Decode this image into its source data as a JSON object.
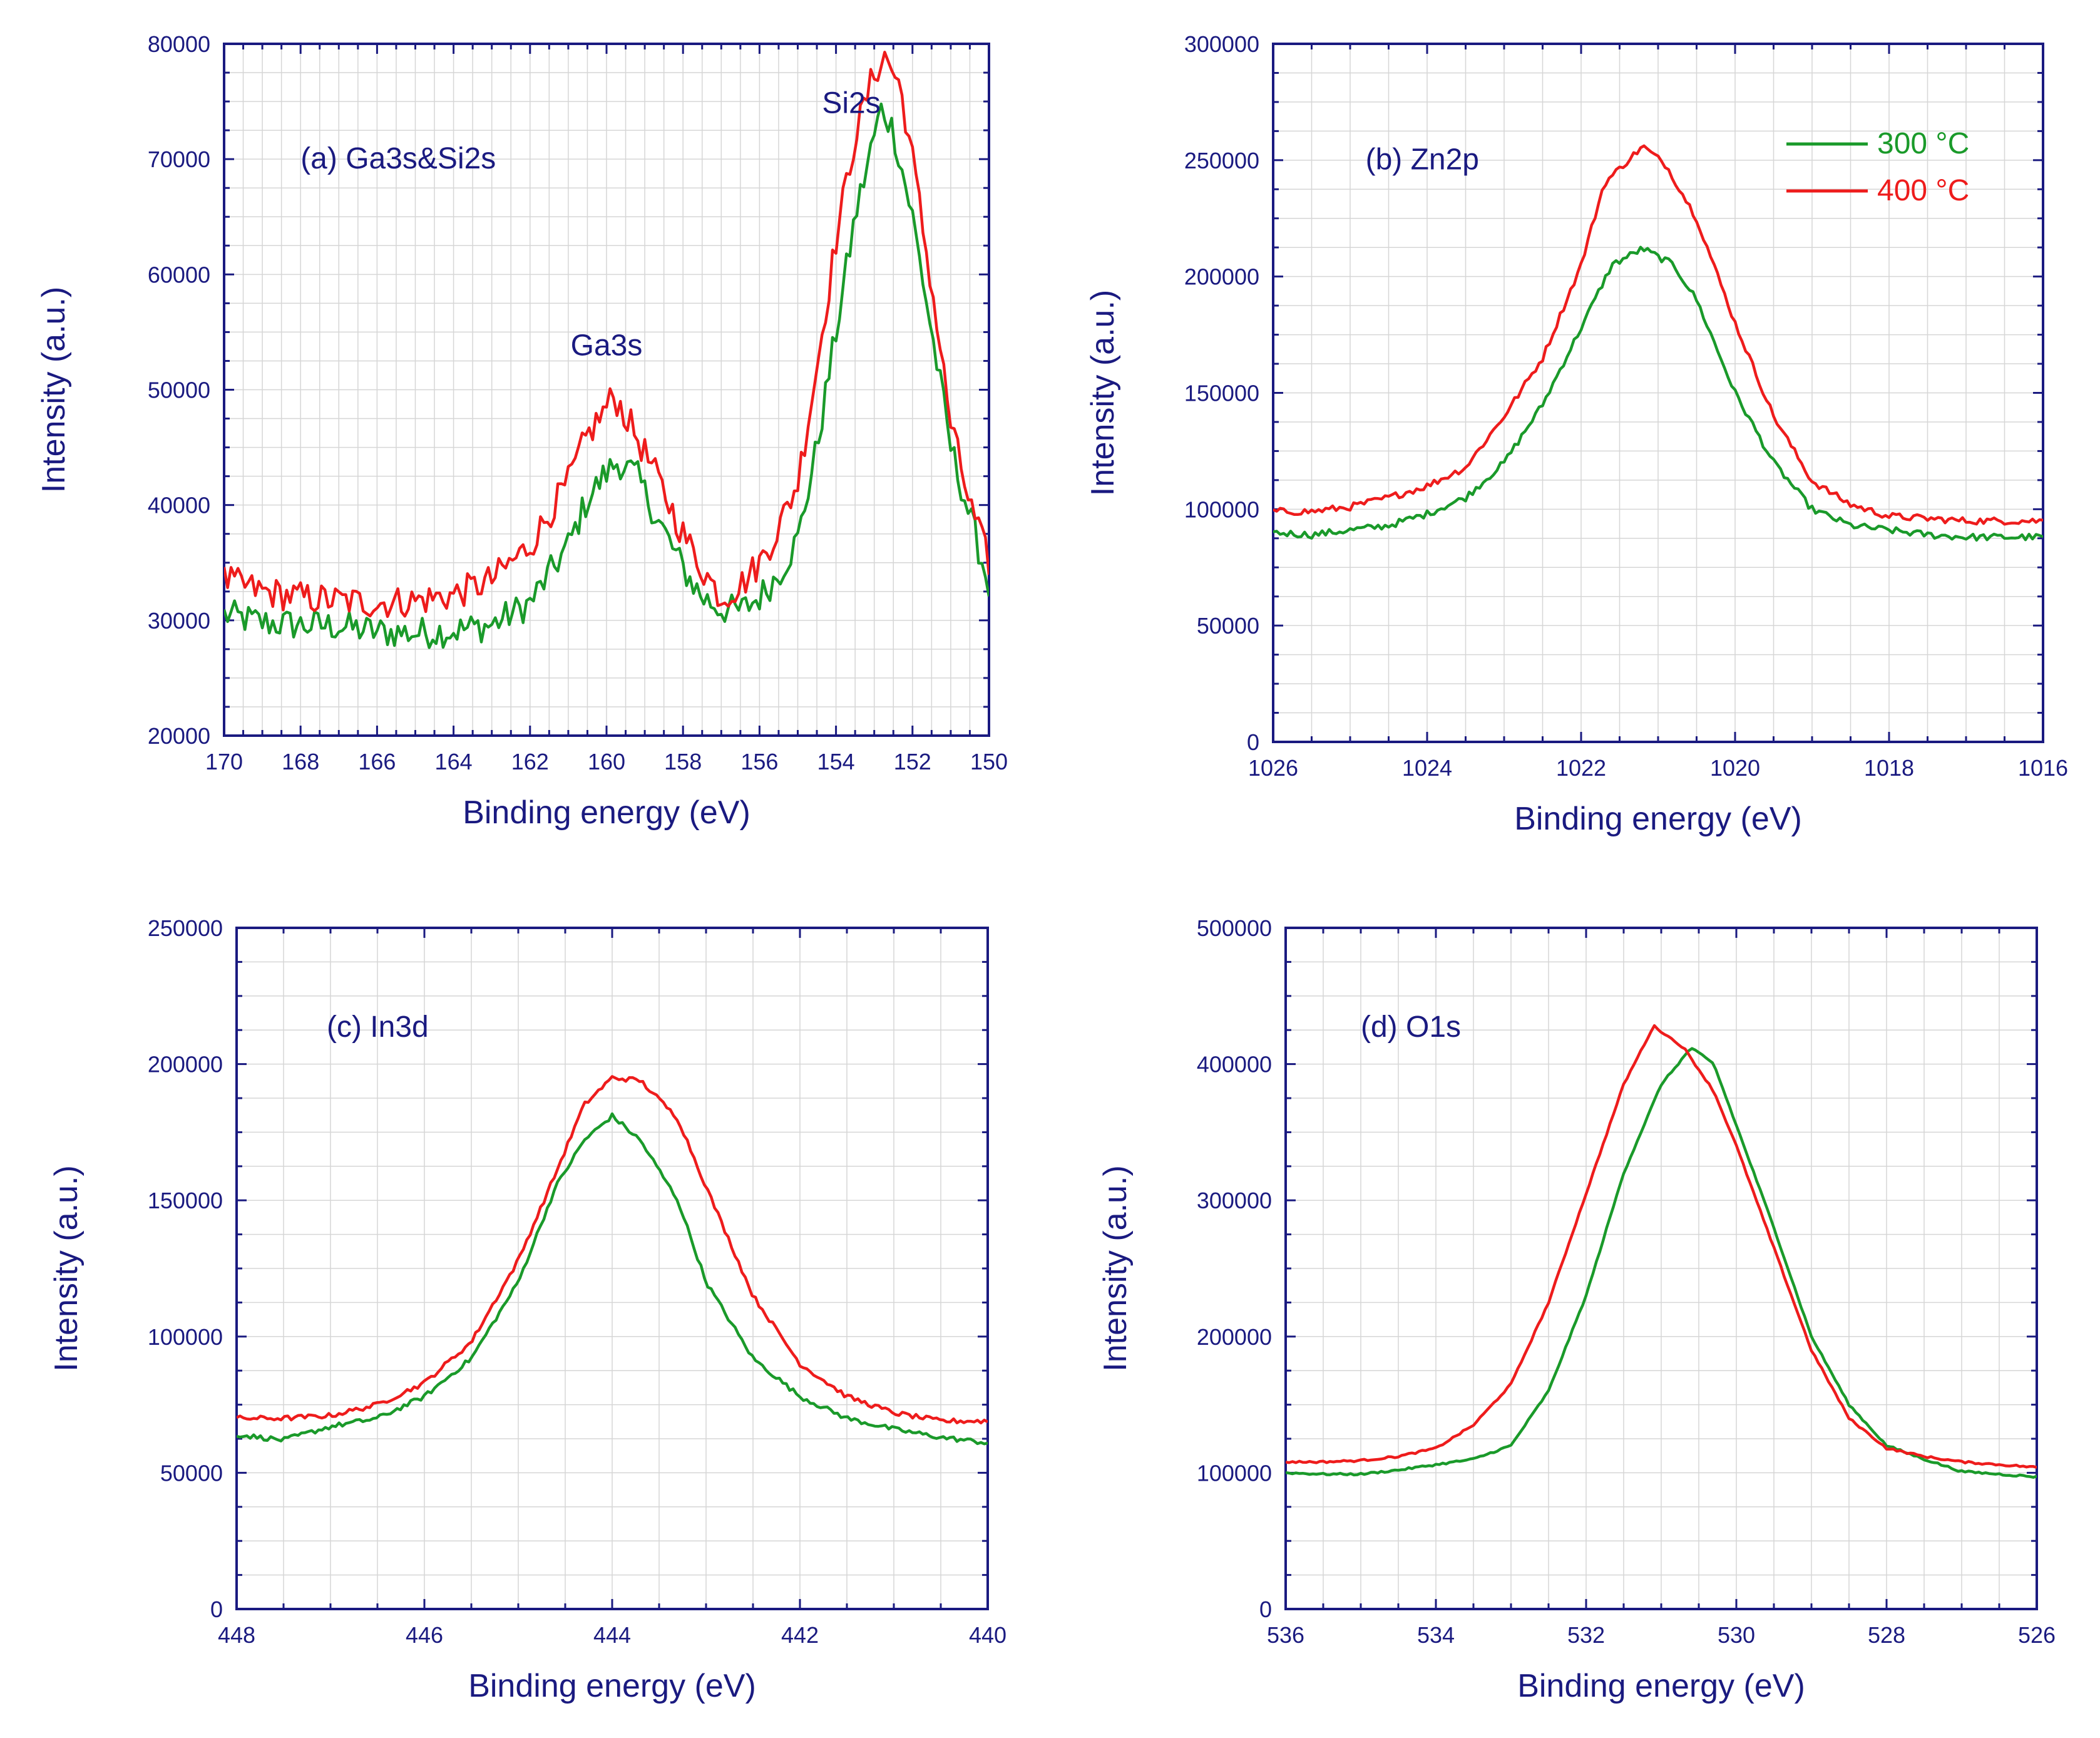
{
  "chart_data": [
    {
      "type": "line",
      "title": "(a) Ga3s&Si2s",
      "xlabel": "Binding energy (eV)",
      "ylabel": "Intensity (a.u.)",
      "xlim": [
        170,
        150
      ],
      "ylim": [
        20000,
        80000
      ],
      "xticks": [
        "170",
        "168",
        "166",
        "164",
        "162",
        "160",
        "158",
        "156",
        "154",
        "152",
        "150"
      ],
      "yticks": [
        "20000",
        "30000",
        "40000",
        "50000",
        "60000",
        "70000",
        "80000"
      ],
      "annotations": [
        {
          "text": "Ga3s",
          "x": 160,
          "y": 53000
        },
        {
          "text": "Si2s",
          "x": 153.6,
          "y": 74000
        }
      ],
      "noise": 1400,
      "series": [
        {
          "name": "300 °C",
          "color": "#1a9a2a",
          "points": [
            [
              170,
              30500
            ],
            [
              169,
              29800
            ],
            [
              168,
              29600
            ],
            [
              167,
              29500
            ],
            [
              166,
              29000
            ],
            [
              165,
              28900
            ],
            [
              164,
              29100
            ],
            [
              163,
              29600
            ],
            [
              162,
              31500
            ],
            [
              161,
              36500
            ],
            [
              160.5,
              40500
            ],
            [
              160,
              42800
            ],
            [
              159.7,
              43800
            ],
            [
              159.2,
              42500
            ],
            [
              158.7,
              39000
            ],
            [
              158,
              34500
            ],
            [
              157.5,
              32000
            ],
            [
              157,
              31000
            ],
            [
              156.5,
              30800
            ],
            [
              156,
              32000
            ],
            [
              155.5,
              34000
            ],
            [
              155,
              37000
            ],
            [
              154.5,
              45000
            ],
            [
              154,
              55000
            ],
            [
              153.5,
              65000
            ],
            [
              153,
              72000
            ],
            [
              152.8,
              74500
            ],
            [
              152.5,
              72500
            ],
            [
              152,
              65000
            ],
            [
              151.5,
              55000
            ],
            [
              151,
              45000
            ],
            [
              150.5,
              39000
            ],
            [
              150,
              33000
            ]
          ]
        },
        {
          "name": "400 °C",
          "color": "#ee1c1c",
          "points": [
            [
              170,
              33500
            ],
            [
              169,
              32500
            ],
            [
              168,
              32000
            ],
            [
              167,
              31700
            ],
            [
              166,
              31500
            ],
            [
              165,
              31700
            ],
            [
              164,
              32200
            ],
            [
              163,
              33500
            ],
            [
              162,
              36500
            ],
            [
              161,
              42000
            ],
            [
              160.5,
              46000
            ],
            [
              160,
              48500
            ],
            [
              159.8,
              49500
            ],
            [
              159.3,
              46500
            ],
            [
              158.7,
              42500
            ],
            [
              158,
              37500
            ],
            [
              157.5,
              34500
            ],
            [
              157,
              32000
            ],
            [
              156.5,
              33000
            ],
            [
              156,
              35000
            ],
            [
              155.5,
              38000
            ],
            [
              155,
              42000
            ],
            [
              154.5,
              52000
            ],
            [
              154,
              63000
            ],
            [
              153.5,
              72000
            ],
            [
              153,
              77500
            ],
            [
              152.7,
              79000
            ],
            [
              152.3,
              76000
            ],
            [
              152,
              70000
            ],
            [
              151.5,
              59000
            ],
            [
              151,
              47000
            ],
            [
              150.5,
              40000
            ],
            [
              150,
              35000
            ]
          ]
        }
      ]
    },
    {
      "type": "line",
      "title": "(b) Zn2p",
      "xlabel": "Binding energy (eV)",
      "ylabel": "Intensity (a.u.)",
      "xlim": [
        1026,
        1016
      ],
      "ylim": [
        0,
        300000
      ],
      "xticks": [
        "1026",
        "1024",
        "1022",
        "1020",
        "1018",
        "1016"
      ],
      "yticks": [
        "0",
        "50000",
        "100000",
        "150000",
        "200000",
        "250000",
        "300000"
      ],
      "legend": {
        "position": "top-right",
        "entries": [
          "300 °C",
          "400 °C"
        ]
      },
      "noise": 1500,
      "series": [
        {
          "name": "300 °C",
          "color": "#1a9a2a",
          "points": [
            [
              1026,
              90000
            ],
            [
              1025.5,
              89000
            ],
            [
              1025,
              91000
            ],
            [
              1024.5,
              93000
            ],
            [
              1024,
              98000
            ],
            [
              1023.5,
              105000
            ],
            [
              1023,
              120000
            ],
            [
              1022.5,
              145000
            ],
            [
              1022,
              178000
            ],
            [
              1021.6,
              205000
            ],
            [
              1021.2,
              212000
            ],
            [
              1020.8,
              205000
            ],
            [
              1020.5,
              190000
            ],
            [
              1020,
              150000
            ],
            [
              1019.5,
              120000
            ],
            [
              1019,
              100000
            ],
            [
              1018.5,
              93000
            ],
            [
              1018,
              91000
            ],
            [
              1017.5,
              89000
            ],
            [
              1017,
              88000
            ],
            [
              1016.5,
              88000
            ],
            [
              1016,
              88000
            ]
          ]
        },
        {
          "name": "400 °C",
          "color": "#ee1c1c",
          "points": [
            [
              1026,
              99000
            ],
            [
              1025.5,
              99000
            ],
            [
              1025,
              101000
            ],
            [
              1024.5,
              105000
            ],
            [
              1024,
              110000
            ],
            [
              1023.5,
              118000
            ],
            [
              1023,
              140000
            ],
            [
              1022.5,
              165000
            ],
            [
              1022,
              205000
            ],
            [
              1021.7,
              240000
            ],
            [
              1021.2,
              256000
            ],
            [
              1020.9,
              248000
            ],
            [
              1020.5,
              225000
            ],
            [
              1020,
              180000
            ],
            [
              1019.5,
              140000
            ],
            [
              1019,
              112000
            ],
            [
              1018.5,
              102000
            ],
            [
              1018,
              97000
            ],
            [
              1017.5,
              96000
            ],
            [
              1017,
              95000
            ],
            [
              1016.5,
              95000
            ],
            [
              1016,
              95000
            ]
          ]
        }
      ]
    },
    {
      "type": "line",
      "title": "(c) In3d",
      "xlabel": "Binding energy (eV)",
      "ylabel": "Intensity (a.u.)",
      "xlim": [
        448,
        440
      ],
      "ylim": [
        0,
        250000
      ],
      "xticks": [
        "448",
        "446",
        "444",
        "442",
        "440"
      ],
      "yticks": [
        "0",
        "50000",
        "100000",
        "150000",
        "200000",
        "250000"
      ],
      "noise": 900,
      "series": [
        {
          "name": "300 °C",
          "color": "#1a9a2a",
          "points": [
            [
              448,
              64000
            ],
            [
              447.5,
              62000
            ],
            [
              447,
              67000
            ],
            [
              446.5,
              70000
            ],
            [
              446,
              78000
            ],
            [
              445.5,
              92000
            ],
            [
              445,
              120000
            ],
            [
              444.6,
              155000
            ],
            [
              444.3,
              172000
            ],
            [
              444,
              181000
            ],
            [
              443.7,
              172000
            ],
            [
              443.3,
              150000
            ],
            [
              443,
              120000
            ],
            [
              442.5,
              92000
            ],
            [
              442,
              78000
            ],
            [
              441.5,
              70000
            ],
            [
              441,
              66000
            ],
            [
              440.5,
              63000
            ],
            [
              440,
              61000
            ]
          ]
        },
        {
          "name": "400 °C",
          "color": "#ee1c1c",
          "points": [
            [
              448,
              70000
            ],
            [
              447.5,
              70000
            ],
            [
              447,
              71000
            ],
            [
              446.5,
              75000
            ],
            [
              446,
              83000
            ],
            [
              445.5,
              98000
            ],
            [
              445,
              128000
            ],
            [
              444.6,
              160000
            ],
            [
              444.3,
              185000
            ],
            [
              444,
              195000
            ],
            [
              443.7,
              194000
            ],
            [
              443.3,
              180000
            ],
            [
              443,
              155000
            ],
            [
              442.5,
              115000
            ],
            [
              442,
              90000
            ],
            [
              441.5,
              78000
            ],
            [
              441,
              72000
            ],
            [
              440.5,
              69000
            ],
            [
              440,
              69000
            ]
          ]
        }
      ]
    },
    {
      "type": "line",
      "title": "(d) O1s",
      "xlabel": "Binding energy (eV)",
      "ylabel": "Intensity (a.u.)",
      "xlim": [
        536,
        526
      ],
      "ylim": [
        0,
        500000
      ],
      "xticks": [
        "536",
        "534",
        "532",
        "530",
        "528",
        "526"
      ],
      "yticks": [
        "0",
        "100000",
        "200000",
        "300000",
        "400000",
        "500000"
      ],
      "noise": 700,
      "series": [
        {
          "name": "300 °C",
          "color": "#1a9a2a",
          "points": [
            [
              536,
              100000
            ],
            [
              535.5,
              99000
            ],
            [
              535,
              99000
            ],
            [
              534.5,
              102000
            ],
            [
              534,
              106000
            ],
            [
              533.5,
              110000
            ],
            [
              533,
              120000
            ],
            [
              532.5,
              160000
            ],
            [
              532,
              230000
            ],
            [
              531.5,
              320000
            ],
            [
              531,
              385000
            ],
            [
              530.6,
              412000
            ],
            [
              530.3,
              400000
            ],
            [
              530,
              355000
            ],
            [
              529.5,
              280000
            ],
            [
              529,
              200000
            ],
            [
              528.5,
              150000
            ],
            [
              528,
              120000
            ],
            [
              527.5,
              110000
            ],
            [
              527,
              101000
            ],
            [
              526.5,
              99000
            ],
            [
              526,
              97000
            ]
          ]
        },
        {
          "name": "400 °C",
          "color": "#ee1c1c",
          "points": [
            [
              536,
              108000
            ],
            [
              535.5,
              108000
            ],
            [
              535,
              109000
            ],
            [
              534.5,
              112000
            ],
            [
              534,
              118000
            ],
            [
              533.5,
              135000
            ],
            [
              533,
              165000
            ],
            [
              532.5,
              225000
            ],
            [
              532,
              305000
            ],
            [
              531.5,
              385000
            ],
            [
              531.1,
              428000
            ],
            [
              530.7,
              412000
            ],
            [
              530.3,
              380000
            ],
            [
              530,
              340000
            ],
            [
              529.5,
              265000
            ],
            [
              529,
              190000
            ],
            [
              528.5,
              140000
            ],
            [
              528,
              118000
            ],
            [
              527.5,
              112000
            ],
            [
              527,
              108000
            ],
            [
              526.5,
              106000
            ],
            [
              526,
              104000
            ]
          ]
        }
      ]
    }
  ]
}
